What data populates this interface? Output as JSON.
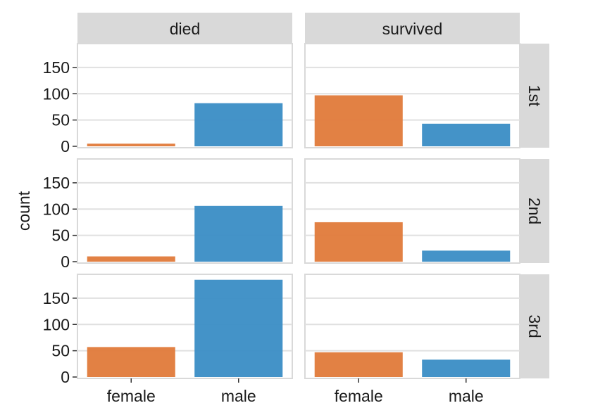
{
  "chart_data": {
    "type": "bar",
    "ylabel": "count",
    "xlabel": "",
    "ylim": [
      0,
      190
    ],
    "yticks": [
      0,
      50,
      100,
      150
    ],
    "categories": [
      "female",
      "male"
    ],
    "col_facets": [
      "died",
      "survived"
    ],
    "row_facets": [
      "1st",
      "2nd",
      "3rd"
    ],
    "colors": {
      "female": "#e07a3a",
      "male": "#3a8dc5"
    },
    "grid": true,
    "legend": "none",
    "panels": [
      {
        "row": "1st",
        "col": "died",
        "values": [
          5,
          82
        ]
      },
      {
        "row": "1st",
        "col": "survived",
        "values": [
          97,
          43
        ]
      },
      {
        "row": "2nd",
        "col": "died",
        "values": [
          10,
          106
        ]
      },
      {
        "row": "2nd",
        "col": "survived",
        "values": [
          75,
          21
        ]
      },
      {
        "row": "3rd",
        "col": "died",
        "values": [
          57,
          185
        ]
      },
      {
        "row": "3rd",
        "col": "survived",
        "values": [
          47,
          33
        ]
      }
    ]
  }
}
